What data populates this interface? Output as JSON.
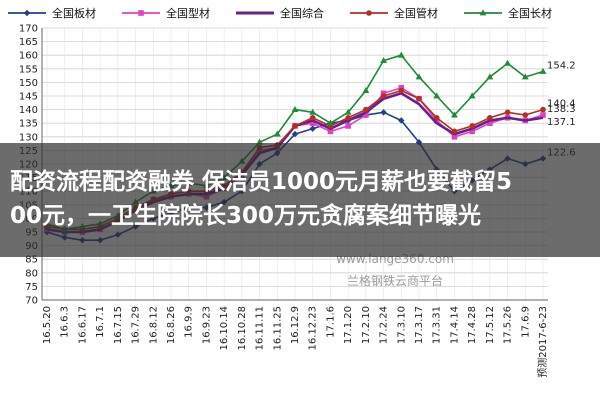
{
  "chart_data": {
    "type": "line",
    "title": "",
    "xlabel": "",
    "ylabel": "",
    "ylim": [
      70,
      170
    ],
    "yticks": [
      70,
      75,
      80,
      85,
      90,
      95,
      100,
      105,
      110,
      115,
      120,
      125,
      130,
      135,
      140,
      145,
      150,
      155,
      160,
      165,
      170
    ],
    "grid": true,
    "legend_position": "top",
    "categories": [
      "16.5.20",
      "16.6.3",
      "16.6.17",
      "16.7.1",
      "16.7.15",
      "16.7.29",
      "16.8.12",
      "16.8.26",
      "16.9.9",
      "16.9.23",
      "16.10.14",
      "16.10.28",
      "16.11.11",
      "16.11.25",
      "16.12.9",
      "16.12.23",
      "17.1.6",
      "17.1.20",
      "17.2.10",
      "17.2.24",
      "17.3.10",
      "17.3.17",
      "17.3.31",
      "17.4.14",
      "17.4.28",
      "17.5.12",
      "17.5.26",
      "17.6.9",
      "预测2017-6-23"
    ],
    "series": [
      {
        "name": "全国板材",
        "color": "#1f3f8f",
        "marker": "diamond",
        "values": [
          95,
          93,
          92,
          92,
          94,
          97,
          100,
          102,
          104,
          104,
          106,
          110,
          120,
          124,
          131,
          133,
          135,
          136,
          138,
          139,
          136,
          128,
          118,
          110,
          114,
          118,
          122,
          120,
          122
        ],
        "end_label": "122.6"
      },
      {
        "name": "全国型材",
        "color": "#e040c8",
        "marker": "square",
        "values": [
          96,
          95,
          95,
          96,
          99,
          103,
          107,
          108,
          109,
          108,
          111,
          116,
          125,
          126,
          134,
          135,
          132,
          134,
          138,
          146,
          148,
          144,
          136,
          130,
          132,
          135,
          137,
          136,
          138
        ],
        "end_label": "138.3"
      },
      {
        "name": "全国综合",
        "color": "#6a1f8a",
        "marker": "none",
        "values": [
          96,
          95,
          95,
          96,
          99,
          103,
          106,
          108,
          109,
          109,
          111,
          116,
          124,
          126,
          134,
          136,
          133,
          136,
          139,
          144,
          146,
          142,
          135,
          131,
          133,
          136,
          137,
          136,
          137
        ],
        "end_label": "137.1"
      },
      {
        "name": "全国管材",
        "color": "#b33020",
        "marker": "circle",
        "values": [
          97,
          96,
          96,
          97,
          100,
          104,
          107,
          109,
          110,
          110,
          112,
          117,
          126,
          127,
          134,
          137,
          134,
          137,
          140,
          145,
          147,
          144,
          137,
          132,
          134,
          137,
          139,
          138,
          140
        ],
        "end_label": "140.4"
      },
      {
        "name": "全国长材",
        "color": "#1e8a3a",
        "marker": "triangle",
        "values": [
          98,
          96,
          97,
          98,
          101,
          106,
          110,
          112,
          113,
          112,
          115,
          121,
          128,
          131,
          140,
          139,
          135,
          139,
          147,
          158,
          160,
          152,
          145,
          138,
          145,
          152,
          157,
          152,
          154
        ],
        "end_label": "154.2"
      }
    ]
  },
  "watermark": {
    "url": "www.lange360.com",
    "platform": "兰格钢铁云商平台"
  },
  "overlay": {
    "line1": "配资流程配资融券 保洁员1000元月薪也要截留5",
    "line2": "00元，一卫生院院长300万元贪腐案细节曝光"
  }
}
